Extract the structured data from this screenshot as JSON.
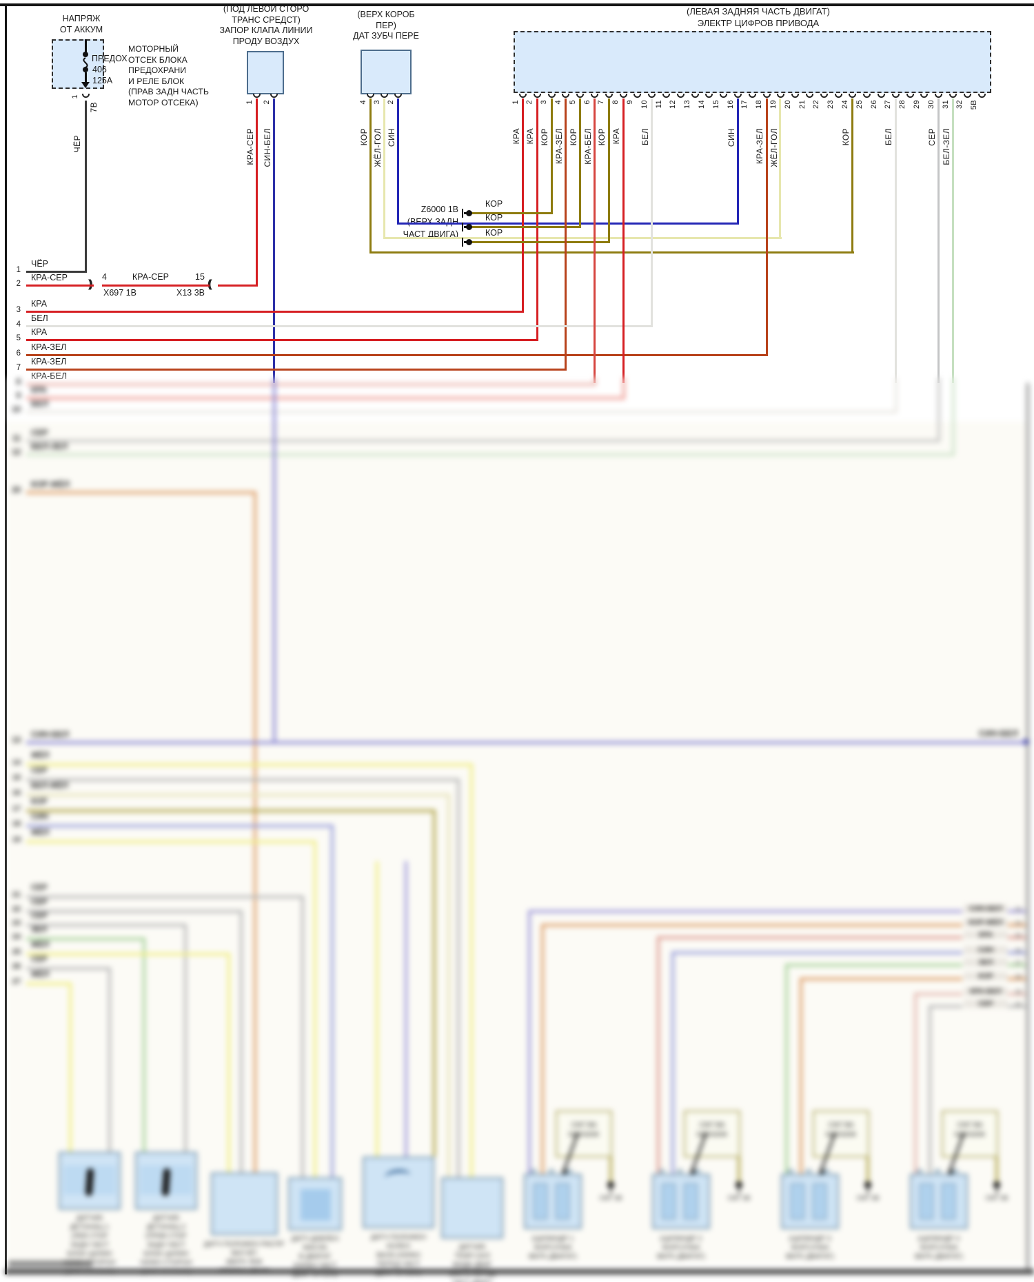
{
  "fuse_box": {
    "title_lines": [
      "НАПРЯЖ",
      "ОТ АККУМ"
    ],
    "fuse_label": "ПРЕДОХ",
    "fuse_number": "406",
    "fuse_amps": "125А",
    "side_note_lines": [
      "МОТОРНЫЙ",
      "ОТСЕК БЛОКА",
      "ПРЕДОХРАНИ",
      "И РЕЛЕ БЛОК",
      "(ПРАВ ЗАДН ЧАСТЬ",
      "МОТОР ОТСЕКА)"
    ],
    "pin": "1",
    "connector": "7В",
    "wire": "ЧЁР"
  },
  "purge_valve": {
    "title_lines": [
      "(ПОД ЛЕВОЙ СТОРО",
      "ТРАНС СРЕДСТ)",
      "ЗАПОР КЛАПА ЛИНИИ",
      "ПРОДУ ВОЗДУХ"
    ],
    "pins": [
      {
        "n": "1",
        "label": "КРА-СЕР"
      },
      {
        "n": "2",
        "label": "СИН-БЕЛ"
      }
    ]
  },
  "gear_sensor": {
    "title_lines": [
      "(ВЕРХ КОРОБ",
      "ПЕР)",
      "ДАТ ЗУБЧ ПЕРЕ"
    ],
    "pins": [
      {
        "n": "4",
        "label": "КОР"
      },
      {
        "n": "3",
        "label": "ЖЁЛ-ГОЛ"
      },
      {
        "n": "2",
        "label": "СИН"
      }
    ]
  },
  "ecu": {
    "title_lines": [
      "(ЛЕВАЯ ЗАДНЯЯ ЧАСТЬ ДВИГАТ)",
      "ЭЛЕКТР ЦИФРОВ ПРИВОДА"
    ],
    "pins": [
      {
        "n": "1",
        "label": "КРА"
      },
      {
        "n": "2",
        "label": "КРА"
      },
      {
        "n": "3",
        "label": "КОР"
      },
      {
        "n": "4",
        "label": "КРА-ЗЕЛ"
      },
      {
        "n": "5",
        "label": "КОР"
      },
      {
        "n": "6",
        "label": "КРА-БЕЛ"
      },
      {
        "n": "7",
        "label": "КОР"
      },
      {
        "n": "8",
        "label": "КРА"
      },
      {
        "n": "9",
        "label": ""
      },
      {
        "n": "10",
        "label": "БЕЛ"
      },
      {
        "n": "11",
        "label": ""
      },
      {
        "n": "12",
        "label": ""
      },
      {
        "n": "13",
        "label": ""
      },
      {
        "n": "14",
        "label": ""
      },
      {
        "n": "15",
        "label": ""
      },
      {
        "n": "16",
        "label": "СИН"
      },
      {
        "n": "17",
        "label": ""
      },
      {
        "n": "18",
        "label": "КРА-ЗЕЛ"
      },
      {
        "n": "19",
        "label": "ЖЁЛ-ГОЛ"
      },
      {
        "n": "20",
        "label": ""
      },
      {
        "n": "21",
        "label": ""
      },
      {
        "n": "22",
        "label": ""
      },
      {
        "n": "23",
        "label": ""
      },
      {
        "n": "24",
        "label": "КОР"
      },
      {
        "n": "25",
        "label": ""
      },
      {
        "n": "26",
        "label": ""
      },
      {
        "n": "27",
        "label": "БЕЛ"
      },
      {
        "n": "28",
        "label": ""
      },
      {
        "n": "29",
        "label": ""
      },
      {
        "n": "30",
        "label": "СЕР"
      },
      {
        "n": "31",
        "label": "БЕЛ-ЗЕЛ"
      },
      {
        "n": "32",
        "label": ""
      },
      {
        "n": "5В",
        "label": ""
      }
    ]
  },
  "ground_z6000": {
    "name": "Z6000 1В",
    "location_lines": [
      "(ВЕРХ ЗАДН",
      "ЧАСТ ДВИГА)"
    ],
    "wires": [
      "КОР",
      "КОР",
      "КОР"
    ]
  },
  "splice": {
    "left_pin": "4",
    "left_connector": "X697 1В",
    "mid_wire": "КРА-СЕР",
    "right_pin": "15",
    "right_connector": "X13 3В"
  },
  "left_rows": [
    {
      "n": "1",
      "label": "ЧЁР"
    },
    {
      "n": "2",
      "label": "КРА-СЕР"
    },
    {
      "n": "3",
      "label": "КРА"
    },
    {
      "n": "4",
      "label": "БЕЛ"
    },
    {
      "n": "5",
      "label": "КРА"
    },
    {
      "n": "6",
      "label": "КРА-ЗЕЛ"
    },
    {
      "n": "7",
      "label": "КРА-ЗЕЛ"
    },
    {
      "n": "8",
      "label": "КРА-БЕЛ"
    },
    {
      "n": "9",
      "label": "КРА"
    },
    {
      "n": "10",
      "label": "БЕЛ"
    },
    {
      "n": "11",
      "label": "СЕР"
    },
    {
      "n": "12",
      "label": "БЕЛ-ЗЕЛ"
    },
    {
      "n": "13",
      "label": "СИН-БЕЛ"
    },
    {
      "n": "20",
      "label": "КОР-ЖЁЛ"
    }
  ],
  "sin_bel_right_label": "СИН-БЕЛ",
  "e_stack": [
    {
      "n": "14",
      "label": "ЖЁЛ"
    },
    {
      "n": "15",
      "label": "СЕР"
    },
    {
      "n": "16",
      "label": "БЕЛ-ЖЁЛ"
    },
    {
      "n": "17",
      "label": "КОР"
    },
    {
      "n": "18",
      "label": "СИН"
    },
    {
      "n": "19",
      "label": "ЖЁЛ"
    }
  ],
  "f_stack": [
    {
      "n": "21",
      "label": "СЕР"
    },
    {
      "n": "22",
      "label": "СЕР"
    },
    {
      "n": "23",
      "label": "СЕР"
    },
    {
      "n": "24",
      "label": "ЗЕЛ"
    },
    {
      "n": "25",
      "label": "ЖЁЛ"
    },
    {
      "n": "26",
      "label": "СЕР"
    },
    {
      "n": "27",
      "label": "ЖЁЛ"
    }
  ],
  "g_stack": [
    {
      "n": "33",
      "label": "СИН-БЕЛ"
    },
    {
      "n": "34",
      "label": "КОР-ЖЁЛ"
    },
    {
      "n": "35",
      "label": "КРА"
    },
    {
      "n": "36",
      "label": "СИН"
    },
    {
      "n": "37",
      "label": "ЗЕЛ"
    },
    {
      "n": "38",
      "label": "КОР"
    },
    {
      "n": "39",
      "label": "КРА-БЕЛ"
    },
    {
      "n": "40",
      "label": "СЕР"
    }
  ],
  "components": {
    "knock_sensors": [
      {
        "captions": [
          "ДАТЧИК",
          "ДЕТОНАЦ 1",
          "(ЛЕВ СТОР",
          "ЗАДН ЧАСТ",
          "БЛОК ЦИЛИН",
          "НИЖН СТОРОН",
          "ДВИГ ОТСЕКА)"
        ]
      },
      {
        "captions": [
          "ДАТЧИК",
          "ДЕТОНАЦ 2",
          "(ПРАВ СТОР",
          "ЗАДН ЧАСТ",
          "БЛОК ЦИЛИН",
          "НИЖН СТОРОН",
          "ДВИГ ОТСЕКА)"
        ]
      }
    ],
    "cam_sensor": {
      "captions": [
        "ДАТЧ ПОЛОЖЕН РАСПР",
        "ВАЛ ВП",
        "(ВЕРХ ЛЕВ",
        "СТОРОН ДВИГ)"
      ]
    },
    "oil_sensor": {
      "captions": [
        "ДАТЧ ДАВЛЕН",
        "МАСЛА",
        "В ДВИГАТ",
        "(НИЖН ЧАСТ",
        "ДВИГ ОТСЕК)"
      ]
    },
    "crank_sensor": {
      "captions": [
        "ДАТЧ ПОЛОЖЕН",
        "КОЛЕН",
        "ВАЛА (НИЖН",
        "ПЕРЕД ЧАСТ",
        "ДВИГ ОТСЕК)"
      ]
    },
    "temp_sensor": {
      "captions": [
        "ДАТЧИК",
        "ТЕМП ОХЛ",
        "ЖИДК ДВИГ",
        "(ВЕРХ ПЕРЕД",
        "ЧАСТ ДВИГ)"
      ]
    },
    "injectors": [
      {
        "callout": [
          "СМ7 ВА",
          "МАННИФ"
        ],
        "ground": "СМ7 3В",
        "captions": [
          "(ЦИЛИНДР 1",
          "ФОРСУНКА",
          "ВЕРХ ДВИГАТ)"
        ]
      },
      {
        "callout": [
          "СМ7 ВА",
          "МАННИФ"
        ],
        "ground": "СМ7 3В",
        "captions": [
          "(ЦИЛИНДР 2",
          "ФОРСУНКА",
          "ВЕРХ ДВИГАТ)"
        ]
      },
      {
        "callout": [
          "СМ7 ВА",
          "МАННИФ"
        ],
        "ground": "СМ7 3В",
        "captions": [
          "(ЦИЛИНДР 3",
          "ФОРСУНКА",
          "ВЕРХ ДВИГАТ)"
        ]
      },
      {
        "callout": [
          "СМ7 ВА",
          "МАННИФ"
        ],
        "ground": "СМ7 3В",
        "captions": [
          "(ЦИЛИНДР 4",
          "ФОРСУНКА",
          "ВЕРХ ДВИГАТ)"
        ]
      }
    ]
  },
  "colors": {
    "kra": "#d61f23",
    "kor": "#8e7c10",
    "sin": "#2326b5",
    "sin_bel": "#2e31a8",
    "bel": "#e2e2de",
    "ser": "#c4c5c6",
    "bel_zel": "#c5dfc0",
    "zhel_gol": "#e7e7ae",
    "kra_zel": "#b8431c",
    "kra_bel": "#d6453f",
    "cher": "#3b3b3b",
    "kra_w": "#ef9f97",
    "kra_bel_w": "#eab3ac",
    "bel_w": "#e9e7e1",
    "ser_w": "#c6c6c4",
    "belzel_w": "#cfe4ca",
    "sinbel_w": "#8b88d4",
    "orange": "#dfa06c",
    "yellow": "#f1ee85",
    "gray": "#b9b9b9",
    "pale": "#e7e3ba",
    "olive": "#b2a64c",
    "blue": "#9aa0dc",
    "purple": "#a29cdb",
    "green": "#a8d29c",
    "red_w": "#de9d92",
    "pink": "#e5bab2",
    "box_fill": "#d9eafb",
    "comp_fill": "#cfe4f5",
    "comp_border": "#6888a2"
  }
}
